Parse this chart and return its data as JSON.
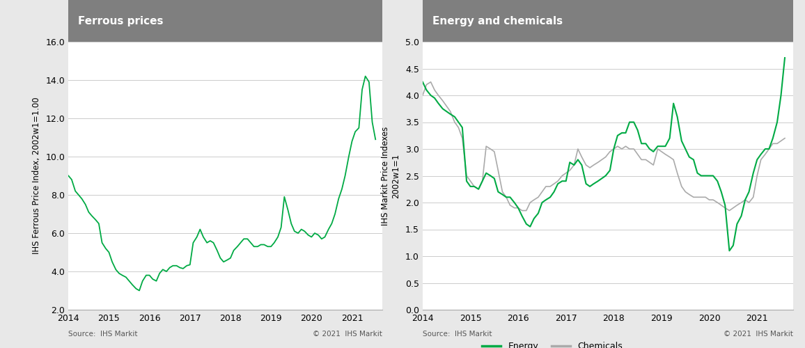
{
  "ferrous_title": "Ferrous prices",
  "ferrous_ylabel": "IHS Ferrous Price Index, 2002w1=1.00",
  "ferrous_ylim": [
    2.0,
    16.0
  ],
  "ferrous_yticks": [
    2.0,
    4.0,
    6.0,
    8.0,
    10.0,
    12.0,
    14.0,
    16.0
  ],
  "ferrous_color": "#00aa44",
  "energy_chem_title": "Energy and chemicals",
  "energy_chem_ylabel": "IHS Markit Price Indexes\n2002w1=1",
  "energy_ylim": [
    0.0,
    5.0
  ],
  "energy_yticks": [
    0.0,
    0.5,
    1.0,
    1.5,
    2.0,
    2.5,
    3.0,
    3.5,
    4.0,
    4.5,
    5.0
  ],
  "energy_color": "#00aa44",
  "chemicals_color": "#aaaaaa",
  "source_text": "Source:  IHS Markit",
  "copyright_text": "© 2021  IHS Markit",
  "header_bg": "#7f7f7f",
  "header_text_color": "#ffffff",
  "plot_bg": "#ffffff",
  "fig_bg": "#e8e8e8",
  "grid_color": "#cccccc",
  "ferrous_x": [
    2014.0,
    2014.08,
    2014.17,
    2014.25,
    2014.33,
    2014.42,
    2014.5,
    2014.58,
    2014.67,
    2014.75,
    2014.83,
    2014.92,
    2015.0,
    2015.08,
    2015.17,
    2015.25,
    2015.33,
    2015.42,
    2015.5,
    2015.58,
    2015.67,
    2015.75,
    2015.83,
    2015.92,
    2016.0,
    2016.08,
    2016.17,
    2016.25,
    2016.33,
    2016.42,
    2016.5,
    2016.58,
    2016.67,
    2016.75,
    2016.83,
    2016.92,
    2017.0,
    2017.08,
    2017.17,
    2017.25,
    2017.33,
    2017.42,
    2017.5,
    2017.58,
    2017.67,
    2017.75,
    2017.83,
    2017.92,
    2018.0,
    2018.08,
    2018.17,
    2018.25,
    2018.33,
    2018.42,
    2018.5,
    2018.58,
    2018.67,
    2018.75,
    2018.83,
    2018.92,
    2019.0,
    2019.08,
    2019.17,
    2019.25,
    2019.33,
    2019.42,
    2019.5,
    2019.58,
    2019.67,
    2019.75,
    2019.83,
    2019.92,
    2020.0,
    2020.08,
    2020.17,
    2020.25,
    2020.33,
    2020.42,
    2020.5,
    2020.58,
    2020.67,
    2020.75,
    2020.83,
    2020.92,
    2021.0,
    2021.08,
    2021.17,
    2021.25,
    2021.33,
    2021.42,
    2021.5,
    2021.58
  ],
  "ferrous_y": [
    9.0,
    8.8,
    8.2,
    8.0,
    7.8,
    7.5,
    7.1,
    6.9,
    6.7,
    6.5,
    5.5,
    5.2,
    5.0,
    4.5,
    4.1,
    3.9,
    3.8,
    3.7,
    3.5,
    3.3,
    3.1,
    3.0,
    3.5,
    3.8,
    3.8,
    3.6,
    3.5,
    3.9,
    4.1,
    4.0,
    4.2,
    4.3,
    4.3,
    4.2,
    4.15,
    4.3,
    4.35,
    5.5,
    5.8,
    6.2,
    5.8,
    5.5,
    5.6,
    5.5,
    5.1,
    4.7,
    4.5,
    4.6,
    4.7,
    5.1,
    5.3,
    5.5,
    5.7,
    5.7,
    5.5,
    5.3,
    5.3,
    5.4,
    5.4,
    5.3,
    5.3,
    5.5,
    5.8,
    6.3,
    7.9,
    7.2,
    6.5,
    6.1,
    6.0,
    6.2,
    6.1,
    5.9,
    5.8,
    6.0,
    5.9,
    5.7,
    5.8,
    6.2,
    6.5,
    7.0,
    7.8,
    8.3,
    9.0,
    10.0,
    10.8,
    11.3,
    11.5,
    13.5,
    14.2,
    13.9,
    11.8,
    10.9
  ],
  "energy_x": [
    2014.0,
    2014.08,
    2014.17,
    2014.25,
    2014.33,
    2014.42,
    2014.5,
    2014.58,
    2014.67,
    2014.75,
    2014.83,
    2014.92,
    2015.0,
    2015.08,
    2015.17,
    2015.25,
    2015.33,
    2015.42,
    2015.5,
    2015.58,
    2015.67,
    2015.75,
    2015.83,
    2015.92,
    2016.0,
    2016.08,
    2016.17,
    2016.25,
    2016.33,
    2016.42,
    2016.5,
    2016.58,
    2016.67,
    2016.75,
    2016.83,
    2016.92,
    2017.0,
    2017.08,
    2017.17,
    2017.25,
    2017.33,
    2017.42,
    2017.5,
    2017.58,
    2017.67,
    2017.75,
    2017.83,
    2017.92,
    2018.0,
    2018.08,
    2018.17,
    2018.25,
    2018.33,
    2018.42,
    2018.5,
    2018.58,
    2018.67,
    2018.75,
    2018.83,
    2018.92,
    2019.0,
    2019.08,
    2019.17,
    2019.25,
    2019.33,
    2019.42,
    2019.5,
    2019.58,
    2019.67,
    2019.75,
    2019.83,
    2019.92,
    2020.0,
    2020.08,
    2020.17,
    2020.25,
    2020.33,
    2020.42,
    2020.5,
    2020.58,
    2020.67,
    2020.75,
    2020.83,
    2020.92,
    2021.0,
    2021.08,
    2021.17,
    2021.25,
    2021.33,
    2021.42,
    2021.5,
    2021.58
  ],
  "energy_y": [
    4.25,
    4.1,
    4.0,
    3.95,
    3.85,
    3.75,
    3.7,
    3.65,
    3.6,
    3.5,
    3.4,
    2.4,
    2.3,
    2.3,
    2.25,
    2.4,
    2.55,
    2.5,
    2.45,
    2.2,
    2.15,
    2.1,
    2.1,
    2.0,
    1.9,
    1.75,
    1.6,
    1.55,
    1.7,
    1.8,
    2.0,
    2.05,
    2.1,
    2.2,
    2.35,
    2.4,
    2.4,
    2.75,
    2.7,
    2.8,
    2.7,
    2.35,
    2.3,
    2.35,
    2.4,
    2.45,
    2.5,
    2.6,
    3.0,
    3.25,
    3.3,
    3.3,
    3.5,
    3.5,
    3.35,
    3.1,
    3.1,
    3.0,
    2.95,
    3.05,
    3.05,
    3.05,
    3.2,
    3.85,
    3.6,
    3.15,
    3.0,
    2.85,
    2.8,
    2.55,
    2.5,
    2.5,
    2.5,
    2.5,
    2.4,
    2.2,
    1.95,
    1.1,
    1.2,
    1.6,
    1.75,
    2.05,
    2.2,
    2.55,
    2.8,
    2.9,
    3.0,
    3.0,
    3.2,
    3.5,
    4.0,
    4.7
  ],
  "chemicals_x": [
    2014.0,
    2014.08,
    2014.17,
    2014.25,
    2014.33,
    2014.42,
    2014.5,
    2014.58,
    2014.67,
    2014.75,
    2014.83,
    2014.92,
    2015.0,
    2015.08,
    2015.17,
    2015.25,
    2015.33,
    2015.42,
    2015.5,
    2015.58,
    2015.67,
    2015.75,
    2015.83,
    2015.92,
    2016.0,
    2016.08,
    2016.17,
    2016.25,
    2016.33,
    2016.42,
    2016.5,
    2016.58,
    2016.67,
    2016.75,
    2016.83,
    2016.92,
    2017.0,
    2017.08,
    2017.17,
    2017.25,
    2017.33,
    2017.42,
    2017.5,
    2017.58,
    2017.67,
    2017.75,
    2017.83,
    2017.92,
    2018.0,
    2018.08,
    2018.17,
    2018.25,
    2018.33,
    2018.42,
    2018.5,
    2018.58,
    2018.67,
    2018.75,
    2018.83,
    2018.92,
    2019.0,
    2019.08,
    2019.17,
    2019.25,
    2019.33,
    2019.42,
    2019.5,
    2019.58,
    2019.67,
    2019.75,
    2019.83,
    2019.92,
    2020.0,
    2020.08,
    2020.17,
    2020.25,
    2020.33,
    2020.42,
    2020.5,
    2020.58,
    2020.67,
    2020.75,
    2020.83,
    2020.92,
    2021.0,
    2021.08,
    2021.17,
    2021.25,
    2021.33,
    2021.42,
    2021.5,
    2021.58
  ],
  "chemicals_y": [
    4.0,
    4.2,
    4.25,
    4.1,
    4.0,
    3.9,
    3.8,
    3.7,
    3.5,
    3.4,
    3.2,
    2.5,
    2.4,
    2.3,
    2.25,
    2.4,
    3.05,
    3.0,
    2.95,
    2.6,
    2.2,
    2.1,
    1.95,
    1.9,
    1.9,
    1.85,
    1.85,
    2.0,
    2.05,
    2.1,
    2.2,
    2.3,
    2.3,
    2.35,
    2.4,
    2.5,
    2.55,
    2.6,
    2.7,
    3.0,
    2.85,
    2.7,
    2.65,
    2.7,
    2.75,
    2.8,
    2.85,
    2.95,
    3.0,
    3.05,
    3.0,
    3.05,
    3.0,
    3.0,
    2.9,
    2.8,
    2.8,
    2.75,
    2.7,
    3.0,
    2.95,
    2.9,
    2.85,
    2.8,
    2.55,
    2.3,
    2.2,
    2.15,
    2.1,
    2.1,
    2.1,
    2.1,
    2.05,
    2.05,
    2.0,
    1.95,
    1.9,
    1.85,
    1.9,
    1.95,
    2.0,
    2.05,
    2.0,
    2.1,
    2.5,
    2.8,
    2.9,
    3.0,
    3.1,
    3.1,
    3.15,
    3.2
  ],
  "xticks": [
    2014,
    2015,
    2016,
    2017,
    2018,
    2019,
    2020,
    2021
  ]
}
